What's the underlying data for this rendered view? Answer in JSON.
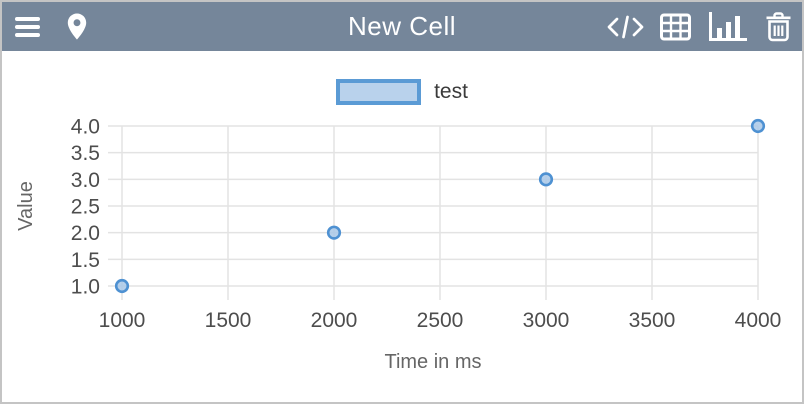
{
  "header": {
    "title": "New Cell",
    "left_icons": [
      {
        "name": "menu-icon"
      },
      {
        "name": "location-pin-icon"
      }
    ],
    "right_icons": [
      {
        "name": "code-icon"
      },
      {
        "name": "table-icon"
      },
      {
        "name": "bar-chart-icon",
        "active": true
      },
      {
        "name": "trash-icon"
      }
    ]
  },
  "legend": {
    "label": "test",
    "swatch_border_color": "#5b9bd5",
    "swatch_fill_color": "#b9d2ec"
  },
  "chart_data": {
    "type": "scatter",
    "title": "",
    "xlabel": "Time in ms",
    "ylabel": "Value",
    "xlim": [
      1000,
      4000
    ],
    "ylim": [
      1.0,
      4.0
    ],
    "x_ticks": [
      1000,
      1500,
      2000,
      2500,
      3000,
      3500,
      4000
    ],
    "y_ticks": [
      1.0,
      1.5,
      2.0,
      2.5,
      3.0,
      3.5,
      4.0
    ],
    "grid": true,
    "legend_position": "top",
    "series": [
      {
        "name": "test",
        "points": [
          [
            1000,
            1.0
          ],
          [
            2000,
            2.0
          ],
          [
            3000,
            3.0
          ],
          [
            4000,
            4.0
          ]
        ]
      }
    ],
    "colors": {
      "grid_line": "#e3e3e3",
      "tick_label": "#4d4d4d",
      "axis_title": "#666666",
      "point_stroke": "#4e91d2",
      "point_fill": "#a9c8e8"
    }
  },
  "colors": {
    "header_bg": "#75869a",
    "window_border": "#c4c4c4",
    "icon_color": "#ffffff"
  }
}
